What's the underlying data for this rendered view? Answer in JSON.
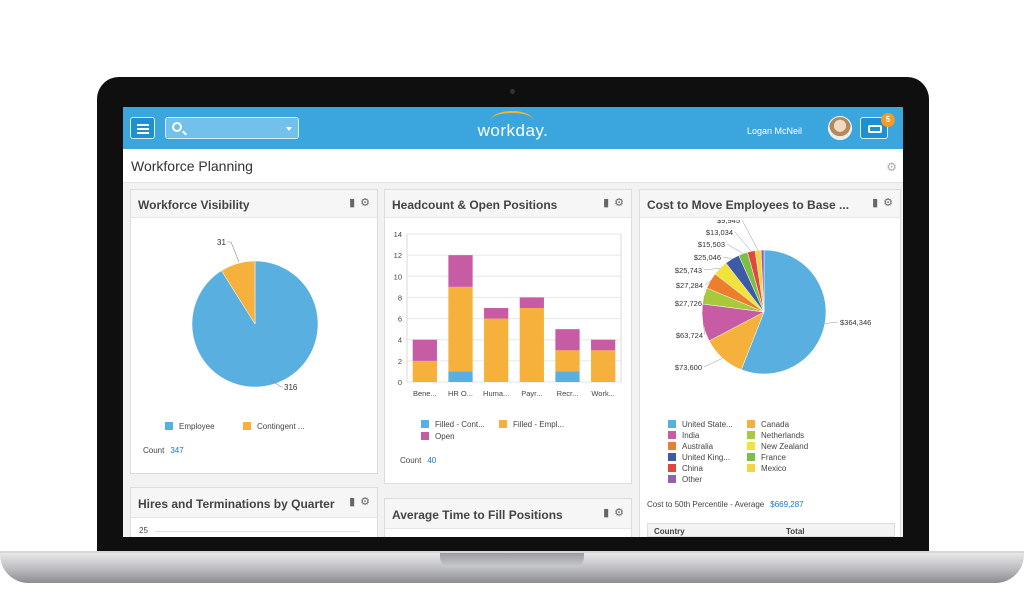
{
  "header": {
    "logo": "workday.",
    "user_name": "Logan McNeil",
    "notifications_count": "5",
    "menu_icon": "hamburger-menu-icon",
    "search_icon": "search-icon",
    "inbox_icon": "inbox-icon"
  },
  "page": {
    "title": "Workforce Planning",
    "gear_icon": "gear-icon"
  },
  "colors": {
    "brand": "#3ba6dd",
    "blue": "#5aafe1",
    "orange": "#f5b13b",
    "magenta": "#c85ca4",
    "link": "#1a76c8"
  },
  "panels": {
    "workforce_visibility": {
      "title": "Workforce Visibility",
      "count_label": "Count",
      "count_value": "347",
      "chart_data": {
        "type": "pie",
        "slices": [
          {
            "label": "Employee",
            "value": 316
          },
          {
            "label": "Contingent ...",
            "value": 31
          }
        ],
        "data_labels": [
          "316",
          "31"
        ]
      }
    },
    "headcount": {
      "title": "Headcount & Open Positions",
      "count_label": "Count",
      "count_value": "40",
      "chart_data": {
        "type": "bar",
        "stacked": true,
        "categories": [
          "Bene...",
          "HR O...",
          "Huma...",
          "Payr...",
          "Recr...",
          "Work..."
        ],
        "ylim": [
          0,
          14
        ],
        "yticks": [
          "0",
          "2",
          "4",
          "6",
          "8",
          "10",
          "12",
          "14"
        ],
        "series": [
          {
            "name": "Filled - Cont...",
            "values": [
              0,
              1,
              0,
              0,
              1,
              0
            ]
          },
          {
            "name": "Filled - Empl...",
            "values": [
              2,
              8,
              6,
              7,
              2,
              3
            ]
          },
          {
            "name": "Open",
            "values": [
              2,
              3,
              1,
              1,
              2,
              1
            ]
          }
        ]
      }
    },
    "cost_to_move": {
      "title": "Cost to Move Employees to Base ...",
      "summary_label": "Cost to 50th Percentile - Average",
      "summary_value": "$669,287",
      "table_headers": [
        "Country",
        "Total"
      ],
      "legend": [
        "United State...",
        "Canada",
        "India",
        "Netherlands",
        "Australia",
        "New Zealand",
        "United King...",
        "France",
        "China",
        "Mexico",
        "Other"
      ],
      "chart_data": {
        "type": "pie",
        "slices": [
          {
            "label": "United State...",
            "value": 364346,
            "display": "$364,346"
          },
          {
            "label": "Canada",
            "value": 73600,
            "display": "$73,600"
          },
          {
            "label": "India",
            "value": 63724,
            "display": "$63,724"
          },
          {
            "label": "Netherlands",
            "value": 27726,
            "display": "$27,726"
          },
          {
            "label": "Australia",
            "value": 27284,
            "display": "$27,284"
          },
          {
            "label": "New Zealand",
            "value": 25743,
            "display": "$25,743"
          },
          {
            "label": "United King...",
            "value": 25046,
            "display": "$25,046"
          },
          {
            "label": "France",
            "value": 15503,
            "display": "$15,503"
          },
          {
            "label": "China",
            "value": 13034,
            "display": "$13,034"
          },
          {
            "label": "Mexico",
            "value": 9945,
            "display": "$9,945"
          },
          {
            "label": "Other",
            "value": 5000,
            "display": ""
          }
        ]
      }
    },
    "hires_terminations": {
      "title": "Hires and Terminations by Quarter",
      "first_tick": "25"
    },
    "avg_time_fill": {
      "title": "Average Time to Fill Positions"
    }
  }
}
